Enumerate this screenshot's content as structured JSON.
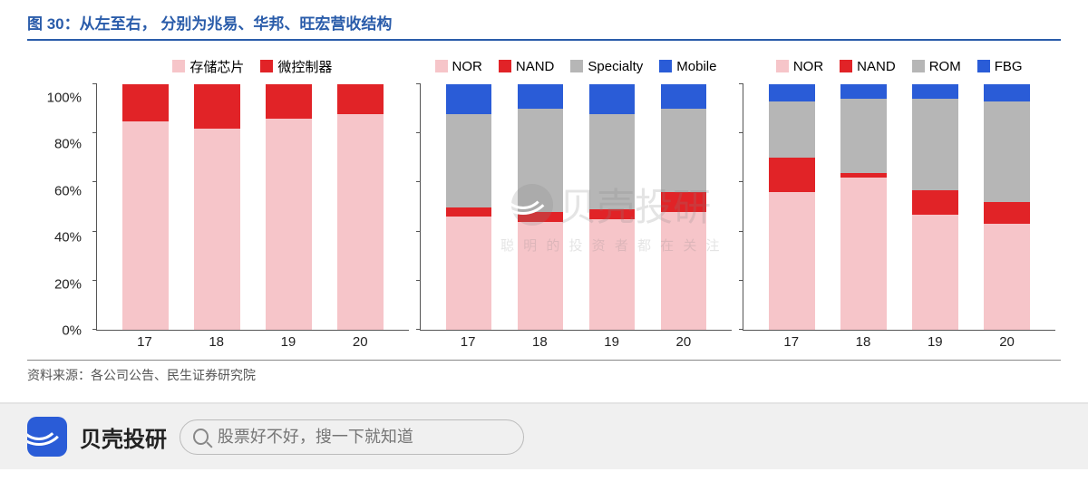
{
  "title": "图 30：从左至右， 分别为兆易、华邦、旺宏营收结构",
  "source": "资料来源：各公司公告、民生证券研究院",
  "yaxis": {
    "ticks": [
      "100%",
      "80%",
      "60%",
      "40%",
      "20%",
      "0%"
    ],
    "ymin": 0,
    "ymax": 100,
    "step": 20
  },
  "colors": {
    "pink": "#f6c5c9",
    "red": "#e12327",
    "grey": "#b6b6b6",
    "blue": "#2a5cd7",
    "axis": "#555555",
    "title": "#2a5caa",
    "text": "#222222"
  },
  "panels": [
    {
      "legend": [
        {
          "label": "存储芯片",
          "color_key": "pink"
        },
        {
          "label": "微控制器",
          "color_key": "red"
        }
      ],
      "categories": [
        "17",
        "18",
        "19",
        "20"
      ],
      "stacks": [
        [
          {
            "k": "pink",
            "v": 85
          },
          {
            "k": "red",
            "v": 15
          }
        ],
        [
          {
            "k": "pink",
            "v": 82
          },
          {
            "k": "red",
            "v": 18
          }
        ],
        [
          {
            "k": "pink",
            "v": 86
          },
          {
            "k": "red",
            "v": 14
          }
        ],
        [
          {
            "k": "pink",
            "v": 88
          },
          {
            "k": "red",
            "v": 12
          }
        ]
      ]
    },
    {
      "legend": [
        {
          "label": "NOR",
          "color_key": "pink"
        },
        {
          "label": "NAND",
          "color_key": "red"
        },
        {
          "label": "Specialty",
          "color_key": "grey"
        },
        {
          "label": "Mobile",
          "color_key": "blue"
        }
      ],
      "categories": [
        "17",
        "18",
        "19",
        "20"
      ],
      "stacks": [
        [
          {
            "k": "pink",
            "v": 46
          },
          {
            "k": "red",
            "v": 4
          },
          {
            "k": "grey",
            "v": 38
          },
          {
            "k": "blue",
            "v": 12
          }
        ],
        [
          {
            "k": "pink",
            "v": 44
          },
          {
            "k": "red",
            "v": 4
          },
          {
            "k": "grey",
            "v": 42
          },
          {
            "k": "blue",
            "v": 10
          }
        ],
        [
          {
            "k": "pink",
            "v": 45
          },
          {
            "k": "red",
            "v": 4
          },
          {
            "k": "grey",
            "v": 39
          },
          {
            "k": "blue",
            "v": 12
          }
        ],
        [
          {
            "k": "pink",
            "v": 48
          },
          {
            "k": "red",
            "v": 8
          },
          {
            "k": "grey",
            "v": 34
          },
          {
            "k": "blue",
            "v": 10
          }
        ]
      ]
    },
    {
      "legend": [
        {
          "label": "NOR",
          "color_key": "pink"
        },
        {
          "label": "NAND",
          "color_key": "red"
        },
        {
          "label": "ROM",
          "color_key": "grey"
        },
        {
          "label": "FBG",
          "color_key": "blue"
        }
      ],
      "categories": [
        "17",
        "18",
        "19",
        "20"
      ],
      "stacks": [
        [
          {
            "k": "pink",
            "v": 56
          },
          {
            "k": "red",
            "v": 14
          },
          {
            "k": "grey",
            "v": 23
          },
          {
            "k": "blue",
            "v": 7
          }
        ],
        [
          {
            "k": "pink",
            "v": 62
          },
          {
            "k": "red",
            "v": 2
          },
          {
            "k": "grey",
            "v": 30
          },
          {
            "k": "blue",
            "v": 6
          }
        ],
        [
          {
            "k": "pink",
            "v": 47
          },
          {
            "k": "red",
            "v": 10
          },
          {
            "k": "grey",
            "v": 37
          },
          {
            "k": "blue",
            "v": 6
          }
        ],
        [
          {
            "k": "pink",
            "v": 43
          },
          {
            "k": "red",
            "v": 9
          },
          {
            "k": "grey",
            "v": 41
          },
          {
            "k": "blue",
            "v": 7
          }
        ]
      ]
    }
  ],
  "watermark": {
    "main": "贝壳投研",
    "sub": "聪 明 的 投 资 者 都 在 关 注"
  },
  "footer": {
    "brand": "贝壳投研",
    "search_placeholder": "股票好不好，搜一下就知道"
  }
}
